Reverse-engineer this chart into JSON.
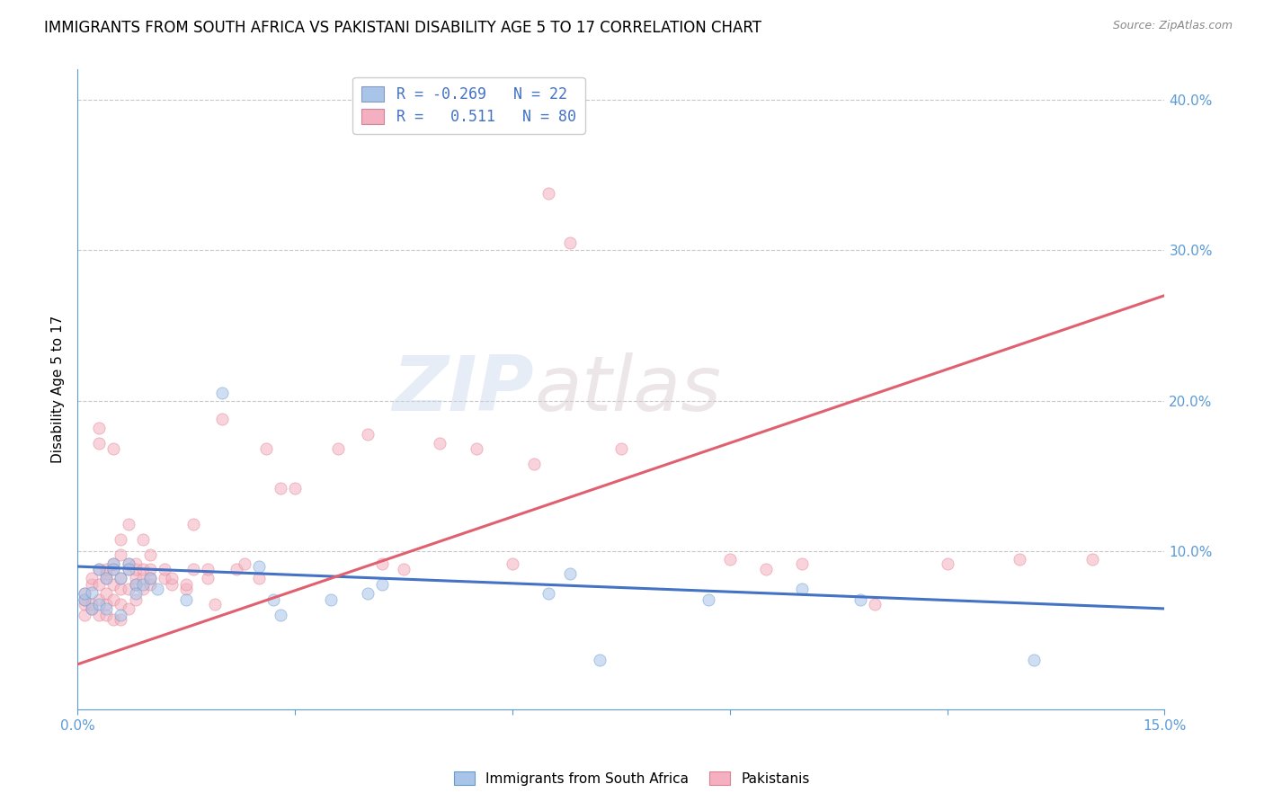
{
  "title": "IMMIGRANTS FROM SOUTH AFRICA VS PAKISTANI DISABILITY AGE 5 TO 17 CORRELATION CHART",
  "source": "Source: ZipAtlas.com",
  "ylabel_label": "Disability Age 5 to 17",
  "xlim": [
    0.0,
    0.15
  ],
  "ylim": [
    -0.005,
    0.42
  ],
  "xticks": [
    0.0,
    0.03,
    0.06,
    0.09,
    0.12,
    0.15
  ],
  "yticks_right": [
    0.1,
    0.2,
    0.3,
    0.4
  ],
  "yticklabels_right": [
    "10.0%",
    "20.0%",
    "30.0%",
    "40.0%"
  ],
  "watermark_zip": "ZIP",
  "watermark_atlas": "atlas",
  "blue_scatter_color": "#a8c4e8",
  "blue_scatter_edge": "#6699cc",
  "pink_scatter_color": "#f4b0c0",
  "pink_scatter_edge": "#e08090",
  "blue_line_color": "#4472c4",
  "pink_line_color": "#e06070",
  "legend_box_blue": "#a8c4e8",
  "legend_box_pink": "#f4b0c0",
  "legend_text_color": "#4472c4",
  "axis_color": "#5b9bd5",
  "grid_color": "#c8c8c8",
  "bg_color": "#ffffff",
  "title_fontsize": 12,
  "tick_fontsize": 11,
  "legend_fontsize": 12,
  "marker_size": 90,
  "marker_alpha": 0.55,
  "south_africa_points": [
    [
      0.001,
      0.068
    ],
    [
      0.001,
      0.072
    ],
    [
      0.002,
      0.073
    ],
    [
      0.002,
      0.062
    ],
    [
      0.003,
      0.088
    ],
    [
      0.003,
      0.065
    ],
    [
      0.004,
      0.082
    ],
    [
      0.004,
      0.062
    ],
    [
      0.005,
      0.092
    ],
    [
      0.005,
      0.088
    ],
    [
      0.006,
      0.082
    ],
    [
      0.006,
      0.058
    ],
    [
      0.007,
      0.092
    ],
    [
      0.007,
      0.088
    ],
    [
      0.008,
      0.078
    ],
    [
      0.008,
      0.072
    ],
    [
      0.009,
      0.078
    ],
    [
      0.01,
      0.082
    ],
    [
      0.011,
      0.075
    ],
    [
      0.015,
      0.068
    ],
    [
      0.02,
      0.205
    ],
    [
      0.025,
      0.09
    ],
    [
      0.027,
      0.068
    ],
    [
      0.028,
      0.058
    ],
    [
      0.035,
      0.068
    ],
    [
      0.04,
      0.072
    ],
    [
      0.042,
      0.078
    ],
    [
      0.065,
      0.072
    ],
    [
      0.068,
      0.085
    ],
    [
      0.072,
      0.028
    ],
    [
      0.087,
      0.068
    ],
    [
      0.1,
      0.075
    ],
    [
      0.108,
      0.068
    ],
    [
      0.132,
      0.028
    ]
  ],
  "pakistani_points": [
    [
      0.001,
      0.058
    ],
    [
      0.001,
      0.065
    ],
    [
      0.001,
      0.068
    ],
    [
      0.001,
      0.072
    ],
    [
      0.002,
      0.062
    ],
    [
      0.002,
      0.065
    ],
    [
      0.002,
      0.078
    ],
    [
      0.002,
      0.082
    ],
    [
      0.003,
      0.058
    ],
    [
      0.003,
      0.068
    ],
    [
      0.003,
      0.078
    ],
    [
      0.003,
      0.088
    ],
    [
      0.003,
      0.172
    ],
    [
      0.003,
      0.182
    ],
    [
      0.004,
      0.058
    ],
    [
      0.004,
      0.065
    ],
    [
      0.004,
      0.072
    ],
    [
      0.004,
      0.082
    ],
    [
      0.004,
      0.085
    ],
    [
      0.004,
      0.088
    ],
    [
      0.005,
      0.055
    ],
    [
      0.005,
      0.068
    ],
    [
      0.005,
      0.078
    ],
    [
      0.005,
      0.088
    ],
    [
      0.005,
      0.092
    ],
    [
      0.005,
      0.168
    ],
    [
      0.006,
      0.055
    ],
    [
      0.006,
      0.065
    ],
    [
      0.006,
      0.075
    ],
    [
      0.006,
      0.082
    ],
    [
      0.006,
      0.098
    ],
    [
      0.006,
      0.108
    ],
    [
      0.007,
      0.062
    ],
    [
      0.007,
      0.075
    ],
    [
      0.007,
      0.088
    ],
    [
      0.007,
      0.092
    ],
    [
      0.007,
      0.118
    ],
    [
      0.008,
      0.068
    ],
    [
      0.008,
      0.078
    ],
    [
      0.008,
      0.082
    ],
    [
      0.008,
      0.088
    ],
    [
      0.008,
      0.092
    ],
    [
      0.009,
      0.075
    ],
    [
      0.009,
      0.082
    ],
    [
      0.009,
      0.088
    ],
    [
      0.009,
      0.108
    ],
    [
      0.01,
      0.078
    ],
    [
      0.01,
      0.082
    ],
    [
      0.01,
      0.088
    ],
    [
      0.01,
      0.098
    ],
    [
      0.012,
      0.082
    ],
    [
      0.012,
      0.088
    ],
    [
      0.013,
      0.078
    ],
    [
      0.013,
      0.082
    ],
    [
      0.015,
      0.075
    ],
    [
      0.015,
      0.078
    ],
    [
      0.016,
      0.088
    ],
    [
      0.016,
      0.118
    ],
    [
      0.018,
      0.082
    ],
    [
      0.018,
      0.088
    ],
    [
      0.019,
      0.065
    ],
    [
      0.02,
      0.188
    ],
    [
      0.022,
      0.088
    ],
    [
      0.023,
      0.092
    ],
    [
      0.025,
      0.082
    ],
    [
      0.026,
      0.168
    ],
    [
      0.028,
      0.142
    ],
    [
      0.03,
      0.142
    ],
    [
      0.036,
      0.168
    ],
    [
      0.04,
      0.178
    ],
    [
      0.042,
      0.092
    ],
    [
      0.045,
      0.088
    ],
    [
      0.05,
      0.172
    ],
    [
      0.055,
      0.168
    ],
    [
      0.06,
      0.092
    ],
    [
      0.063,
      0.158
    ],
    [
      0.065,
      0.338
    ],
    [
      0.068,
      0.305
    ],
    [
      0.075,
      0.168
    ],
    [
      0.09,
      0.095
    ],
    [
      0.095,
      0.088
    ],
    [
      0.1,
      0.092
    ],
    [
      0.11,
      0.065
    ],
    [
      0.12,
      0.092
    ],
    [
      0.13,
      0.095
    ],
    [
      0.14,
      0.095
    ]
  ],
  "blue_line": {
    "x0": 0.0,
    "y0": 0.09,
    "x1": 0.15,
    "y1": 0.062
  },
  "pink_line": {
    "x0": 0.0,
    "y0": 0.025,
    "x1": 0.15,
    "y1": 0.27
  }
}
